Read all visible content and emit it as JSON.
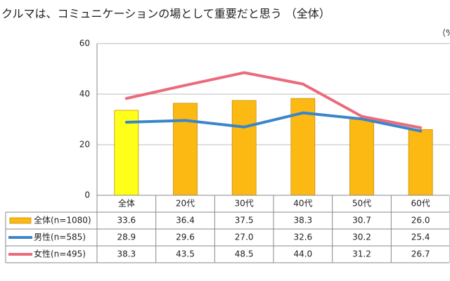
{
  "title": "クルマは、コミュニケーションの場として重要だと思う （全体）",
  "unit": "（%",
  "colors": {
    "bar": "#fcb914",
    "bar_highlight": "#ffff1a",
    "bar_stroke": "#c98f00",
    "male": "#3a86c9",
    "female": "#eb6b7c",
    "grid": "#bdbdbd",
    "axis": "#888888"
  },
  "chart_data": {
    "type": "bar",
    "categories": [
      "全体",
      "20代",
      "30代",
      "40代",
      "50代",
      "60代"
    ],
    "ylim": [
      0,
      60
    ],
    "yticks": [
      0,
      20,
      40,
      60
    ],
    "grid": true,
    "legend": "data-table-left",
    "series": [
      {
        "name": "全体(n=1080)",
        "type": "bar",
        "values": [
          33.6,
          36.4,
          37.5,
          38.3,
          30.7,
          26.0
        ]
      },
      {
        "name": "男性(n=585)",
        "type": "line",
        "values": [
          28.9,
          29.6,
          27.0,
          32.6,
          30.2,
          25.4
        ]
      },
      {
        "name": "女性(n=495)",
        "type": "line",
        "values": [
          38.3,
          43.5,
          48.5,
          44.0,
          31.2,
          26.7
        ]
      }
    ],
    "table": [
      [
        "33.6",
        "36.4",
        "37.5",
        "38.3",
        "30.7",
        "26.0"
      ],
      [
        "28.9",
        "29.6",
        "27.0",
        "32.6",
        "30.2",
        "25.4"
      ],
      [
        "38.3",
        "43.5",
        "48.5",
        "44.0",
        "31.2",
        "26.7"
      ]
    ]
  }
}
